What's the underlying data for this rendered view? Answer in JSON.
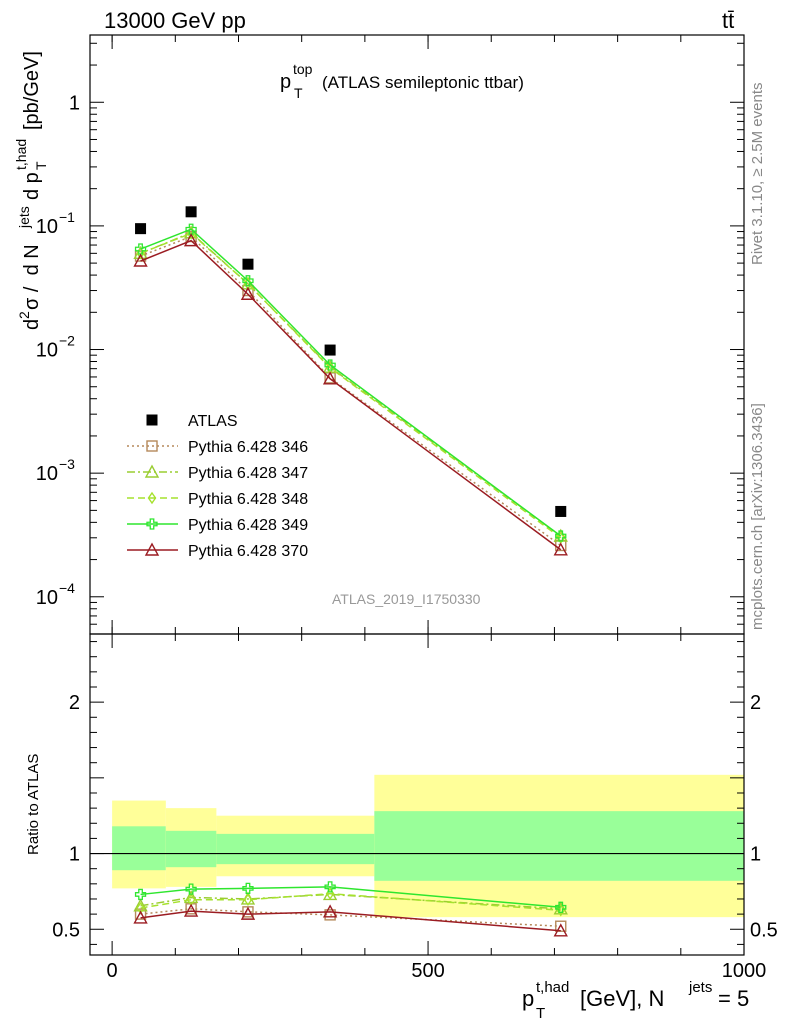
{
  "header": {
    "energy_label": "13000 GeV pp",
    "process_label": "tt̄"
  },
  "side_text": {
    "rivet": "Rivet 3.1.10, ≥ 2.5M events",
    "mcplots": "mcplots.cern.ch [arXiv:1306.3436]"
  },
  "chart_data": [
    {
      "type": "scatter",
      "panel": "main",
      "title": "p_T^top (ATLAS semileptonic ttbar)",
      "title_parts": {
        "main": "p",
        "sup": "top",
        "sub": "T",
        "rest": "(ATLAS semileptonic ttbar)"
      },
      "ylabel": "d²σ / d N^jets d p_T^t,had [pb/GeV]",
      "yscale": "log",
      "ylim": [
        5e-05,
        3.5
      ],
      "xlim": [
        -35,
        1000
      ],
      "watermark": "ATLAS_2019_I1750330",
      "y_ticks": [
        {
          "value": 0.0001,
          "base": "10",
          "exp": "−4"
        },
        {
          "value": 0.001,
          "base": "10",
          "exp": "−3"
        },
        {
          "value": 0.01,
          "base": "10",
          "exp": "−2"
        },
        {
          "value": 0.1,
          "base": "10",
          "exp": "−1"
        },
        {
          "value": 1,
          "base": "1",
          "exp": ""
        }
      ],
      "legend_position": "bottom-left",
      "series": [
        {
          "name": "ATLAS",
          "color": "#000000",
          "marker": "square",
          "line": "none",
          "x": [
            45,
            125,
            215,
            345,
            710
          ],
          "y": [
            0.095,
            0.13,
            0.049,
            0.0099,
            0.00049
          ]
        },
        {
          "name": "Pythia 6.428 346",
          "color": "#b5895a",
          "marker": "open-square",
          "line": "dotted",
          "x": [
            45,
            125,
            215,
            345,
            710
          ],
          "y": [
            0.057,
            0.082,
            0.03,
            0.0059,
            0.00026
          ]
        },
        {
          "name": "Pythia 6.428 347",
          "color": "#9acd32",
          "marker": "open-triangle",
          "line": "dashdot",
          "x": [
            45,
            125,
            215,
            345,
            710
          ],
          "y": [
            0.06,
            0.088,
            0.034,
            0.0072,
            0.00031
          ]
        },
        {
          "name": "Pythia 6.428 348",
          "color": "#a6e22e",
          "marker": "open-diamond",
          "line": "dashed",
          "x": [
            45,
            125,
            215,
            345,
            710
          ],
          "y": [
            0.06,
            0.087,
            0.034,
            0.0071,
            0.0003
          ]
        },
        {
          "name": "Pythia 6.428 349",
          "color": "#2ee62e",
          "marker": "open-cross",
          "line": "solid",
          "x": [
            45,
            125,
            215,
            345,
            710
          ],
          "y": [
            0.065,
            0.094,
            0.036,
            0.0075,
            0.00031
          ]
        },
        {
          "name": "Pythia 6.428 370",
          "color": "#9b1c22",
          "marker": "open-triangle",
          "line": "solid",
          "x": [
            45,
            125,
            215,
            345,
            710
          ],
          "y": [
            0.052,
            0.076,
            0.028,
            0.0058,
            0.00024
          ]
        }
      ]
    },
    {
      "type": "line",
      "panel": "ratio",
      "ylabel": "Ratio to ATLAS",
      "xlabel": "p_T^t,had [GeV], N^jets = 5",
      "xlabel_parts": {
        "p": "p",
        "sub": "T",
        "sup": "t,had",
        "unit": "[GeV], N",
        "nsup": "jets",
        "tail": "= 5"
      },
      "ylim": [
        0.33,
        2.45
      ],
      "xlim": [
        -35,
        1000
      ],
      "x_ticks": [
        0,
        500,
        1000
      ],
      "y_ticks": [
        0.5,
        1,
        2
      ],
      "bands": [
        {
          "x0": 0,
          "x1": 85,
          "yellow": [
            0.77,
            1.35
          ],
          "green": [
            0.89,
            1.18
          ]
        },
        {
          "x0": 85,
          "x1": 165,
          "yellow": [
            0.78,
            1.3
          ],
          "green": [
            0.91,
            1.15
          ]
        },
        {
          "x0": 165,
          "x1": 415,
          "yellow": [
            0.85,
            1.25
          ],
          "green": [
            0.93,
            1.13
          ]
        },
        {
          "x0": 415,
          "x1": 1000,
          "yellow": [
            0.58,
            1.52
          ],
          "green": [
            0.82,
            1.28
          ]
        }
      ],
      "series": [
        {
          "name": "Pythia 6.428 346",
          "x": [
            45,
            125,
            215,
            345,
            710
          ],
          "y": [
            0.6,
            0.635,
            0.615,
            0.595,
            0.52
          ]
        },
        {
          "name": "Pythia 6.428 347",
          "x": [
            45,
            125,
            215,
            345,
            710
          ],
          "y": [
            0.655,
            0.71,
            0.7,
            0.73,
            0.635
          ]
        },
        {
          "name": "Pythia 6.428 348",
          "x": [
            45,
            125,
            215,
            345,
            710
          ],
          "y": [
            0.64,
            0.695,
            0.695,
            0.735,
            0.625
          ]
        },
        {
          "name": "Pythia 6.428 349",
          "x": [
            45,
            125,
            215,
            345,
            710
          ],
          "y": [
            0.73,
            0.765,
            0.77,
            0.78,
            0.645
          ]
        },
        {
          "name": "Pythia 6.428 370",
          "x": [
            45,
            125,
            215,
            345,
            710
          ],
          "y": [
            0.575,
            0.62,
            0.6,
            0.615,
            0.49
          ]
        }
      ]
    }
  ]
}
